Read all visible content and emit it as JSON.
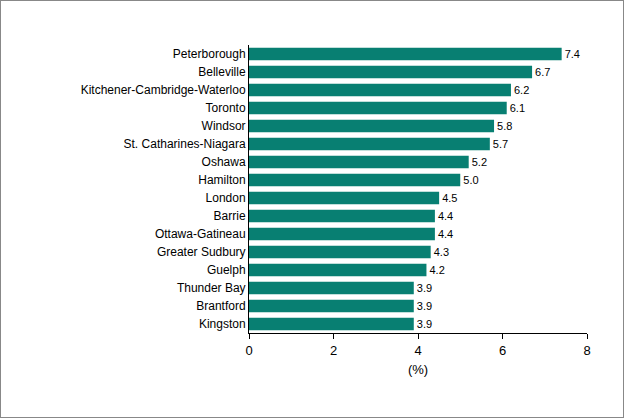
{
  "chart_data": {
    "type": "bar",
    "orientation": "horizontal",
    "categories": [
      "Peterborough",
      "Belleville",
      "Kitchener-Cambridge-Waterloo",
      "Toronto",
      "Windsor",
      "St. Catharines-Niagara",
      "Oshawa",
      "Hamilton",
      "London",
      "Barrie",
      "Ottawa-Gatineau",
      "Greater Sudbury",
      "Guelph",
      "Thunder Bay",
      "Brantford",
      "Kingston"
    ],
    "values": [
      7.4,
      6.7,
      6.2,
      6.1,
      5.8,
      5.7,
      5.2,
      5.0,
      4.5,
      4.4,
      4.4,
      4.3,
      4.2,
      3.9,
      3.9,
      3.9
    ],
    "value_labels": [
      "7.4",
      "6.7",
      "6.2",
      "6.1",
      "5.8",
      "5.7",
      "5.2",
      "5.0",
      "4.5",
      "4.4",
      "4.4",
      "4.3",
      "4.2",
      "3.9",
      "3.9",
      "3.9"
    ],
    "data_labels": true,
    "color": "#087f72",
    "x_label": "(%)",
    "xlim": [
      0,
      8
    ],
    "xticks": [
      0,
      2,
      4,
      6,
      8
    ],
    "grid": false
  }
}
